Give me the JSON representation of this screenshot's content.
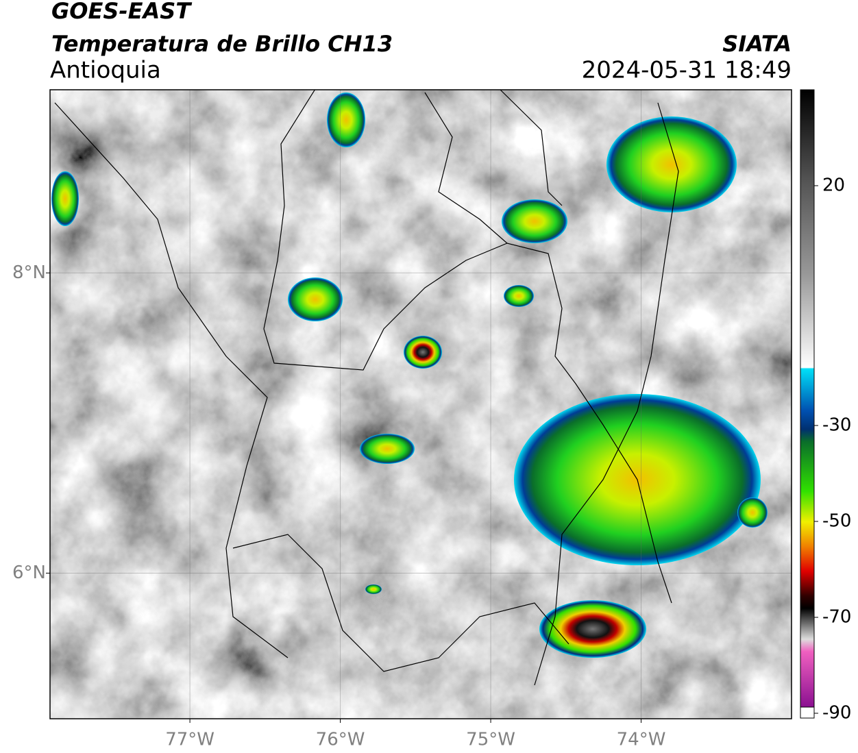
{
  "header": {
    "title": "GOES-EAST",
    "subtitle": "Temperatura de Brillo CH13",
    "region": "Antioquia",
    "source": "SIATA",
    "timestamp": "2024-05-31 18:49"
  },
  "map": {
    "xlim": [
      -77.93,
      -73
    ],
    "ylim": [
      5.03,
      9.22
    ],
    "xticks": [
      {
        "value": -77,
        "label": "77°W"
      },
      {
        "value": -76,
        "label": "76°W"
      },
      {
        "value": -75,
        "label": "75°W"
      },
      {
        "value": -74,
        "label": "74°W"
      }
    ],
    "yticks": [
      {
        "value": 6,
        "label": "6°N"
      },
      {
        "value": 8,
        "label": "8°N"
      }
    ],
    "grid": true
  },
  "colorbar": {
    "lim": [
      -91,
      40
    ],
    "ticks": [
      20,
      -30,
      -50,
      -70,
      -90
    ]
  }
}
